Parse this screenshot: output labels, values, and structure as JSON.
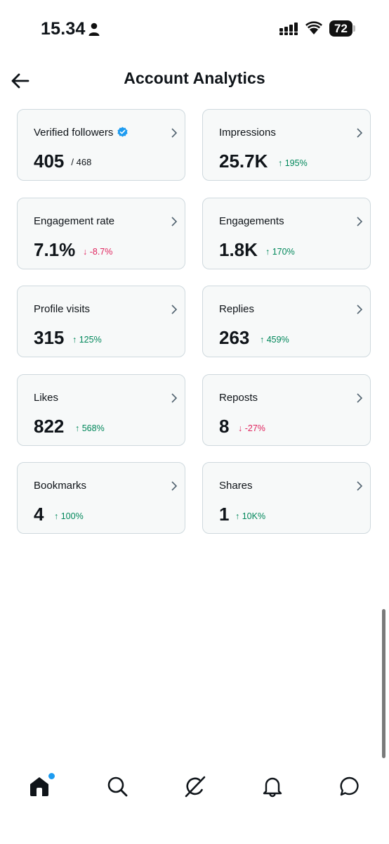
{
  "status_bar": {
    "time": "15.34",
    "battery": "72"
  },
  "header": {
    "title": "Account Analytics"
  },
  "cards": [
    {
      "label": "Verified followers",
      "value": "405",
      "sub": "/ 468",
      "change": "",
      "direction": "",
      "verified": true
    },
    {
      "label": "Impressions",
      "value": "25.7K",
      "change": "↑ 195%",
      "direction": "up"
    },
    {
      "label": "Engagement rate",
      "value": "7.1%",
      "change": "↓ -8.7%",
      "direction": "down"
    },
    {
      "label": "Engagements",
      "value": "1.8K",
      "change": "↑ 170%",
      "direction": "up"
    },
    {
      "label": "Profile visits",
      "value": "315",
      "change": "↑ 125%",
      "direction": "up"
    },
    {
      "label": "Replies",
      "value": "263",
      "change": "↑ 459%",
      "direction": "up"
    },
    {
      "label": "Likes",
      "value": "822",
      "change": "↑ 568%",
      "direction": "up"
    },
    {
      "label": "Reposts",
      "value": "8",
      "change": "↓ -27%",
      "direction": "down"
    },
    {
      "label": "Bookmarks",
      "value": "4",
      "change": "↑ 100%",
      "direction": "up"
    },
    {
      "label": "Shares",
      "value": "1",
      "change": "↑ 10K%",
      "direction": "up"
    }
  ],
  "bottom_nav": [
    {
      "name": "home-icon",
      "has_notification": true
    },
    {
      "name": "search-icon"
    },
    {
      "name": "grok-icon"
    },
    {
      "name": "notifications-icon"
    },
    {
      "name": "messages-icon"
    }
  ],
  "colors": {
    "positive": "#00875a",
    "negative": "#e0245e",
    "verified": "#1d9bf0",
    "card_bg": "#f7f9f9",
    "card_border": "#cfd9de"
  }
}
